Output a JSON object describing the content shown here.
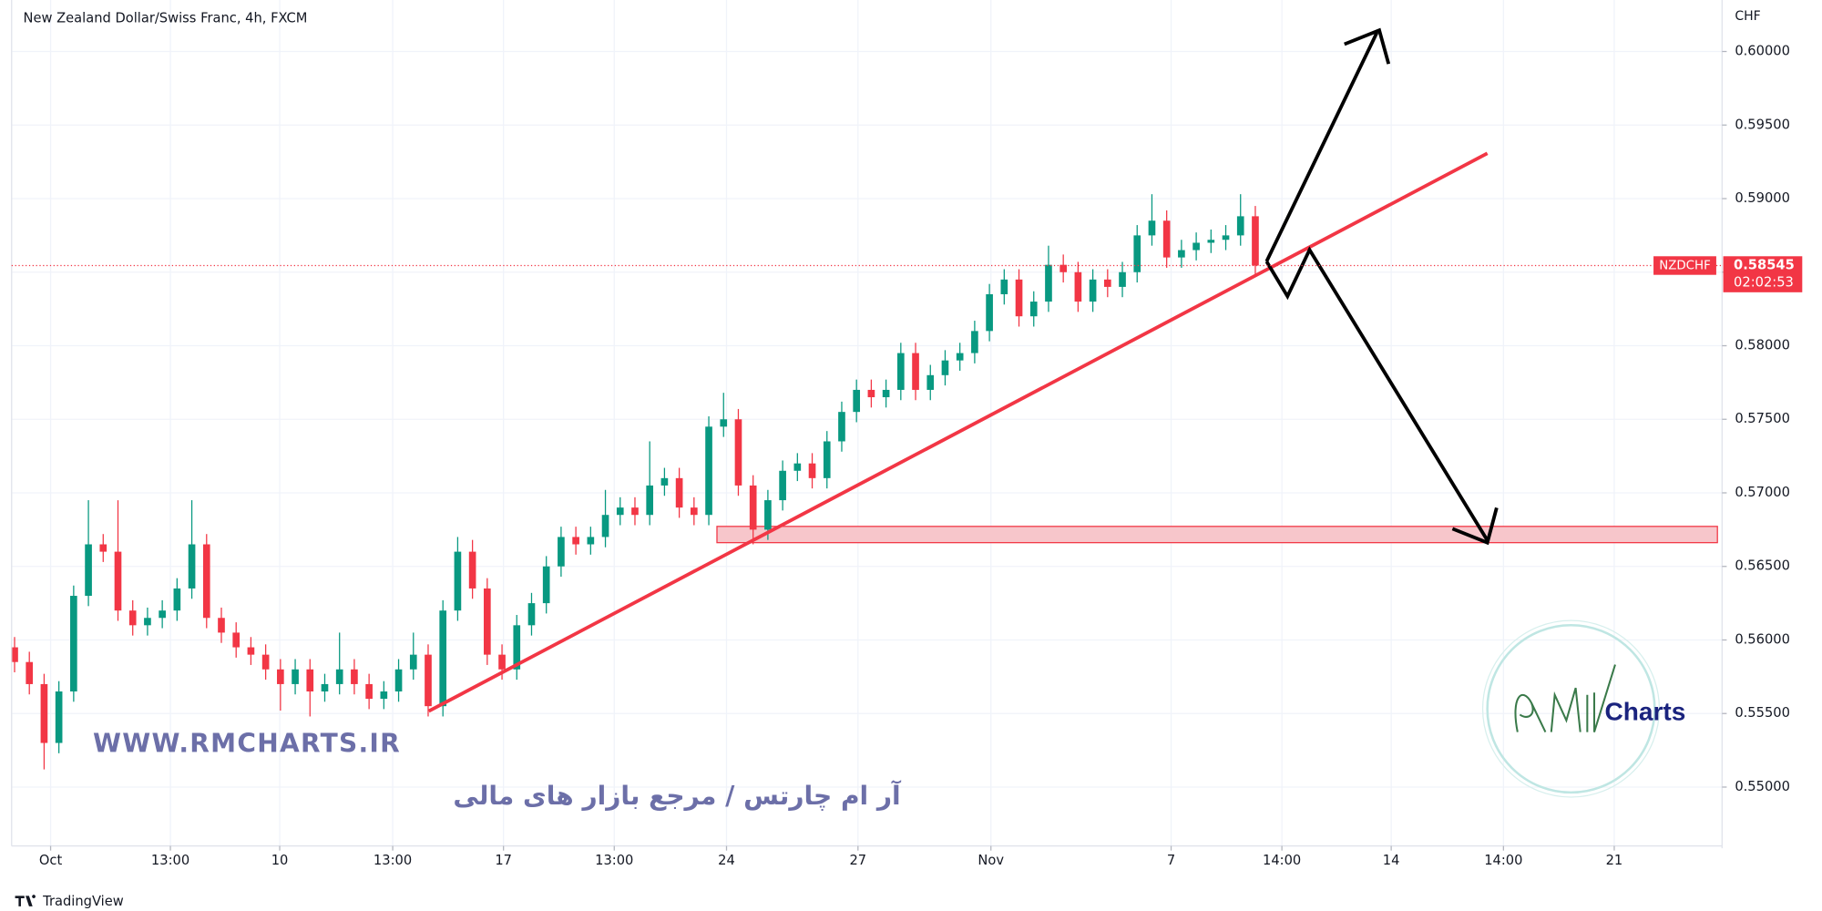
{
  "chart_data": {
    "type": "candlestick",
    "title": "New Zealand Dollar/Swiss Franc, 4h, FXCM",
    "y_unit": "CHF",
    "up_color": "#089981",
    "down_color": "#f23645",
    "ylim": [
      0.546,
      0.6035
    ],
    "yticks": [
      {
        "value": 0.55,
        "label": "0.55000"
      },
      {
        "value": 0.555,
        "label": "0.55500"
      },
      {
        "value": 0.56,
        "label": "0.56000"
      },
      {
        "value": 0.565,
        "label": "0.56500"
      },
      {
        "value": 0.57,
        "label": "0.57000"
      },
      {
        "value": 0.575,
        "label": "0.57500"
      },
      {
        "value": 0.58,
        "label": "0.58000"
      },
      {
        "value": 0.585,
        "label": "0.58500"
      },
      {
        "value": 0.59,
        "label": "0.59000"
      },
      {
        "value": 0.595,
        "label": "0.59500"
      },
      {
        "value": 0.6,
        "label": "0.60000"
      }
    ],
    "xlim": [
      -0.2,
      115.6
    ],
    "xticks": [
      {
        "value": 2.44,
        "label": "Oct"
      },
      {
        "value": 10.55,
        "label": "13:00"
      },
      {
        "value": 17.95,
        "label": "10"
      },
      {
        "value": 25.6,
        "label": "13:00"
      },
      {
        "value": 33.1,
        "label": "17"
      },
      {
        "value": 40.6,
        "label": "13:00"
      },
      {
        "value": 48.2,
        "label": "24"
      },
      {
        "value": 57.1,
        "label": "27"
      },
      {
        "value": 66.1,
        "label": "Nov"
      },
      {
        "value": 78.3,
        "label": "7"
      },
      {
        "value": 85.8,
        "label": "14:00"
      },
      {
        "value": 93.2,
        "label": "14"
      },
      {
        "value": 100.8,
        "label": "14:00"
      },
      {
        "value": 108.3,
        "label": "21"
      }
    ],
    "series": [
      {
        "name": "NZDCHF",
        "values": [
          [
            0.5595,
            0.5602,
            0.5578,
            0.5585
          ],
          [
            0.5585,
            0.5592,
            0.5563,
            0.557
          ],
          [
            0.557,
            0.5577,
            0.5512,
            0.553
          ],
          [
            0.553,
            0.5572,
            0.5523,
            0.5565
          ],
          [
            0.5565,
            0.5637,
            0.5558,
            0.563
          ],
          [
            0.563,
            0.5695,
            0.5623,
            0.5665
          ],
          [
            0.5665,
            0.5672,
            0.5653,
            0.566
          ],
          [
            0.566,
            0.5695,
            0.5613,
            0.562
          ],
          [
            0.562,
            0.5627,
            0.5603,
            0.561
          ],
          [
            0.561,
            0.5622,
            0.5603,
            0.5615
          ],
          [
            0.5615,
            0.5627,
            0.5608,
            0.562
          ],
          [
            0.562,
            0.5642,
            0.5613,
            0.5635
          ],
          [
            0.5635,
            0.5695,
            0.5628,
            0.5665
          ],
          [
            0.5665,
            0.5672,
            0.5608,
            0.5615
          ],
          [
            0.5615,
            0.5622,
            0.5598,
            0.5605
          ],
          [
            0.5605,
            0.5612,
            0.5588,
            0.5595
          ],
          [
            0.5595,
            0.5602,
            0.5583,
            0.559
          ],
          [
            0.559,
            0.5597,
            0.5573,
            0.558
          ],
          [
            0.558,
            0.5587,
            0.5552,
            0.557
          ],
          [
            0.557,
            0.5587,
            0.5563,
            0.558
          ],
          [
            0.558,
            0.5587,
            0.5548,
            0.5565
          ],
          [
            0.5565,
            0.5577,
            0.5558,
            0.557
          ],
          [
            0.557,
            0.5605,
            0.5563,
            0.558
          ],
          [
            0.558,
            0.5587,
            0.5563,
            0.557
          ],
          [
            0.557,
            0.5577,
            0.5553,
            0.556
          ],
          [
            0.556,
            0.5572,
            0.5553,
            0.5565
          ],
          [
            0.5565,
            0.5587,
            0.5558,
            0.558
          ],
          [
            0.558,
            0.5605,
            0.5573,
            0.559
          ],
          [
            0.559,
            0.5597,
            0.5548,
            0.5555
          ],
          [
            0.5555,
            0.5627,
            0.5548,
            0.562
          ],
          [
            0.562,
            0.567,
            0.5613,
            0.566
          ],
          [
            0.566,
            0.5668,
            0.5628,
            0.5635
          ],
          [
            0.5635,
            0.5642,
            0.5583,
            0.559
          ],
          [
            0.559,
            0.5597,
            0.5573,
            0.558
          ],
          [
            0.558,
            0.5617,
            0.5573,
            0.561
          ],
          [
            0.561,
            0.5632,
            0.5603,
            0.5625
          ],
          [
            0.5625,
            0.5657,
            0.5618,
            0.565
          ],
          [
            0.565,
            0.5677,
            0.5643,
            0.567
          ],
          [
            0.567,
            0.5677,
            0.5658,
            0.5665
          ],
          [
            0.5665,
            0.5677,
            0.5658,
            0.567
          ],
          [
            0.567,
            0.5702,
            0.5663,
            0.5685
          ],
          [
            0.5685,
            0.5697,
            0.5678,
            0.569
          ],
          [
            0.569,
            0.5697,
            0.5678,
            0.5685
          ],
          [
            0.5685,
            0.5735,
            0.5678,
            0.5705
          ],
          [
            0.5705,
            0.5717,
            0.5698,
            0.571
          ],
          [
            0.571,
            0.5717,
            0.5683,
            0.569
          ],
          [
            0.569,
            0.5697,
            0.5678,
            0.5685
          ],
          [
            0.5685,
            0.5752,
            0.5678,
            0.5745
          ],
          [
            0.5745,
            0.5768,
            0.5738,
            0.575
          ],
          [
            0.575,
            0.5757,
            0.5698,
            0.5705
          ],
          [
            0.5705,
            0.5712,
            0.5665,
            0.5675
          ],
          [
            0.5675,
            0.5702,
            0.5668,
            0.5695
          ],
          [
            0.5695,
            0.5722,
            0.5688,
            0.5715
          ],
          [
            0.5715,
            0.5727,
            0.5708,
            0.572
          ],
          [
            0.572,
            0.5727,
            0.5703,
            0.571
          ],
          [
            0.571,
            0.5742,
            0.5703,
            0.5735
          ],
          [
            0.5735,
            0.5762,
            0.5728,
            0.5755
          ],
          [
            0.5755,
            0.5777,
            0.5748,
            0.577
          ],
          [
            0.577,
            0.5777,
            0.5758,
            0.5765
          ],
          [
            0.5765,
            0.5777,
            0.5758,
            0.577
          ],
          [
            0.577,
            0.5802,
            0.5763,
            0.5795
          ],
          [
            0.5795,
            0.5802,
            0.5763,
            0.577
          ],
          [
            0.577,
            0.5787,
            0.5763,
            0.578
          ],
          [
            0.578,
            0.5797,
            0.5773,
            0.579
          ],
          [
            0.579,
            0.5802,
            0.5783,
            0.5795
          ],
          [
            0.5795,
            0.5817,
            0.5788,
            0.581
          ],
          [
            0.581,
            0.5842,
            0.5803,
            0.5835
          ],
          [
            0.5835,
            0.5852,
            0.5828,
            0.5845
          ],
          [
            0.5845,
            0.5852,
            0.5813,
            0.582
          ],
          [
            0.582,
            0.5837,
            0.5813,
            0.583
          ],
          [
            0.583,
            0.5868,
            0.5823,
            0.5855
          ],
          [
            0.5855,
            0.5862,
            0.5843,
            0.585
          ],
          [
            0.585,
            0.5857,
            0.5823,
            0.583
          ],
          [
            0.583,
            0.5852,
            0.5823,
            0.5845
          ],
          [
            0.5845,
            0.5852,
            0.5833,
            0.584
          ],
          [
            0.584,
            0.5857,
            0.5833,
            0.585
          ],
          [
            0.585,
            0.5882,
            0.5843,
            0.5875
          ],
          [
            0.5875,
            0.5903,
            0.5868,
            0.5885
          ],
          [
            0.5885,
            0.5892,
            0.5853,
            0.586
          ],
          [
            0.586,
            0.5872,
            0.5853,
            0.5865
          ],
          [
            0.5865,
            0.5877,
            0.5858,
            0.587
          ],
          [
            0.587,
            0.5879,
            0.5863,
            0.5872
          ],
          [
            0.5872,
            0.5882,
            0.5865,
            0.5875
          ],
          [
            0.5875,
            0.5903,
            0.5868,
            0.5888
          ],
          [
            0.5888,
            0.5895,
            0.5848,
            0.58545
          ]
        ]
      }
    ],
    "current_price": {
      "label": "NZDCHF",
      "value": 0.58545,
      "countdown": "02:02:53"
    },
    "watermark": {
      "url": "WWW.RMCHARTS.IR",
      "tagline": "آر ام چارتس / مرجع بازار های مالی",
      "logo": "Charts"
    },
    "footer": "TradingView"
  }
}
